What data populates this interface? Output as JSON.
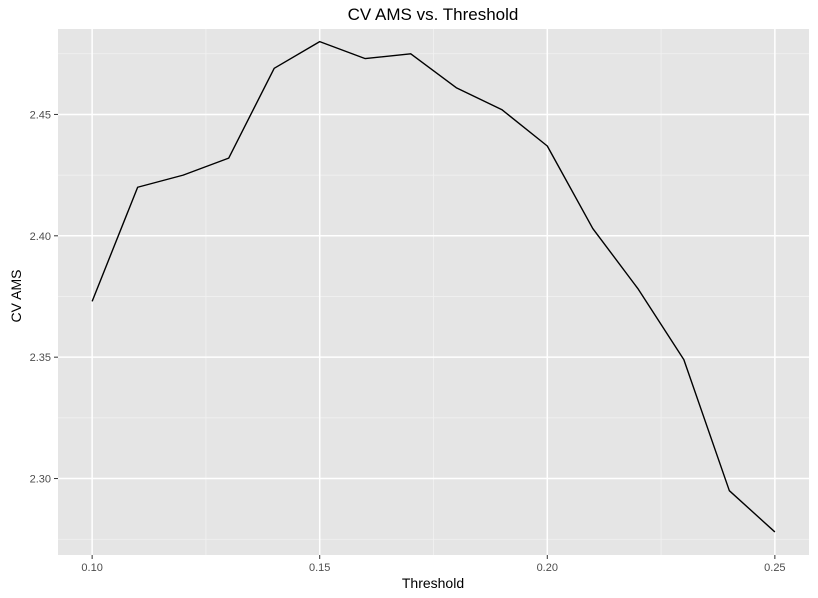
{
  "chart_data": {
    "type": "line",
    "title": "CV AMS vs. Threshold",
    "xlabel": "Threshold",
    "ylabel": "CV AMS",
    "xlim": [
      0.0925,
      0.2575
    ],
    "ylim": [
      2.2685,
      2.4852
    ],
    "x_ticks": [
      "0.10",
      "0.15",
      "0.20",
      "0.25"
    ],
    "x_tick_values": [
      0.1,
      0.15,
      0.2,
      0.25
    ],
    "y_ticks": [
      "2.30",
      "2.35",
      "2.40",
      "2.45"
    ],
    "y_tick_values": [
      2.3,
      2.35,
      2.4,
      2.45
    ],
    "grid": true,
    "background": "#e5e5e5",
    "line_color": "#000000",
    "series": [
      {
        "x": [
          0.1,
          0.11,
          0.12,
          0.13,
          0.14,
          0.15,
          0.16,
          0.17,
          0.18,
          0.19,
          0.2,
          0.21,
          0.22,
          0.23,
          0.24,
          0.25
        ],
        "values": [
          2.373,
          2.42,
          2.425,
          2.432,
          2.469,
          2.48,
          2.473,
          2.475,
          2.461,
          2.452,
          2.437,
          2.403,
          2.378,
          2.349,
          2.295,
          2.278
        ]
      }
    ]
  }
}
